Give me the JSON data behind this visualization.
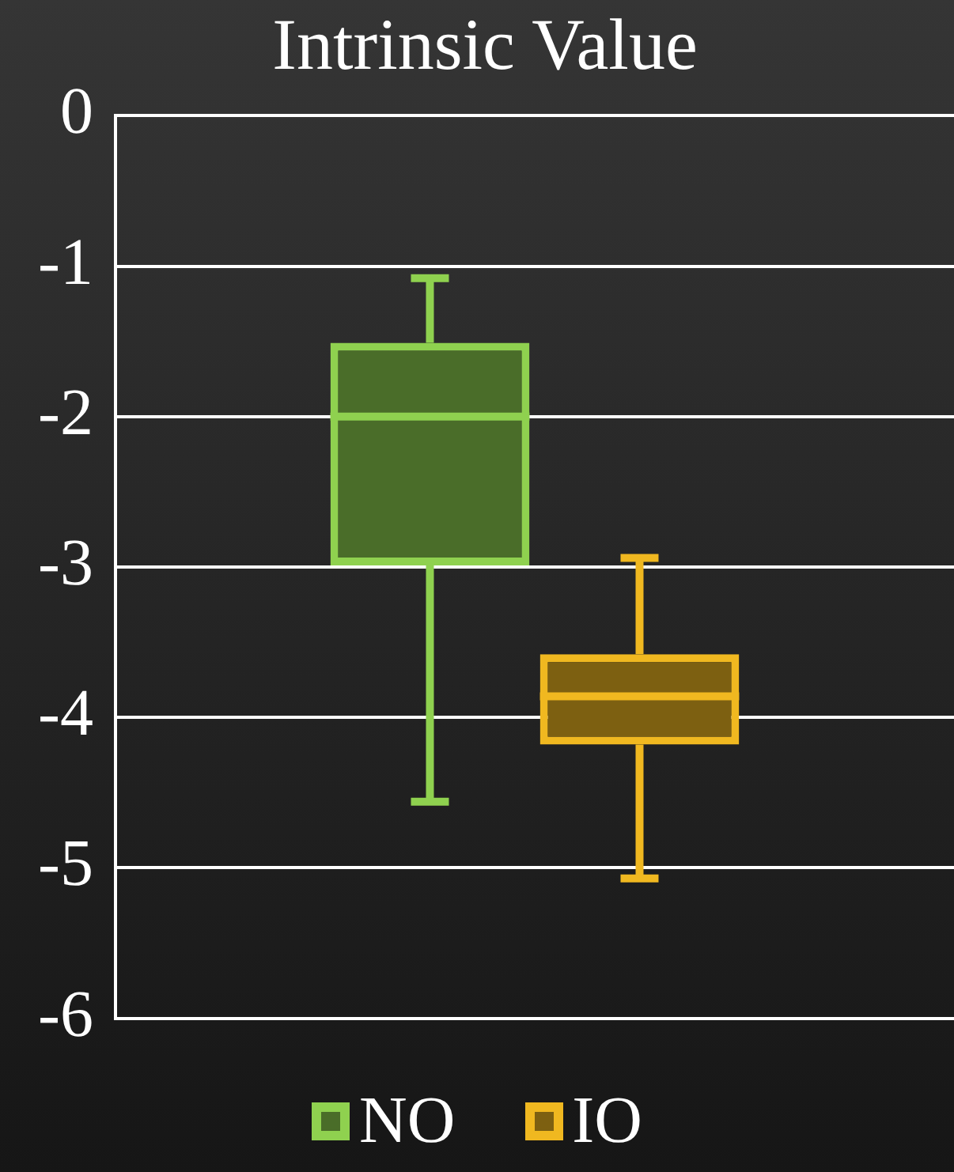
{
  "chart_data": {
    "type": "box",
    "title": "Intrinsic Value",
    "categories": [
      null
    ],
    "series": [
      {
        "name": "NO",
        "color": "#8fd14f",
        "boxes": [
          {
            "low": -4.56,
            "q1": -2.99,
            "median": -2.0,
            "q3": -1.51,
            "high": -1.08
          }
        ]
      },
      {
        "name": "IO",
        "color": "#f0b820",
        "boxes": [
          {
            "low": -5.07,
            "q1": -4.18,
            "median": -3.86,
            "q3": -3.58,
            "high": -2.94
          }
        ]
      }
    ],
    "ylim": [
      -6,
      0
    ],
    "yticks": [
      -6,
      -5,
      -4,
      -3,
      -2,
      -1,
      0
    ],
    "grid": "y",
    "legend": "bottom"
  }
}
